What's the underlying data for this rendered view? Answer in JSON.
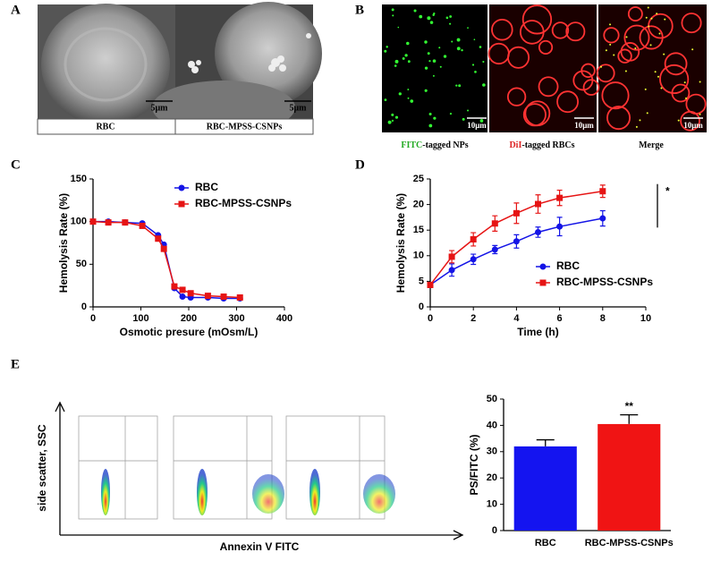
{
  "panels": {
    "a": "A",
    "b": "B",
    "c": "C",
    "d": "D",
    "e": "E"
  },
  "sem": {
    "scale_left": "5μm",
    "scale_right": "5μm",
    "label_left": "RBC",
    "label_right": "RBC-MPSS-CSNPs"
  },
  "fluorescence": {
    "scales": [
      "10μm",
      "10μm",
      "10μm"
    ],
    "captions": [
      {
        "highlight": "FITC",
        "rest": "-tagged NPs"
      },
      {
        "highlight": "DiI",
        "rest": "-tagged RBCs"
      },
      {
        "highlight": "",
        "rest": "Merge"
      }
    ]
  },
  "flow": {
    "ylabel": "side scatter, SSC",
    "xlabel": "Annexin V FITC"
  },
  "chart_data": [
    {
      "type": "line",
      "xlabel": "Osmotic presure (mOsm/L)",
      "ylabel": "Hemolysis Rate (%)",
      "x": [
        0,
        32,
        67,
        103,
        136,
        148,
        170,
        187,
        204,
        240,
        273,
        307
      ],
      "xlim": [
        0,
        400
      ],
      "xticks": [
        0,
        100,
        200,
        300,
        400
      ],
      "ylim": [
        0,
        150
      ],
      "yticks": [
        0,
        50,
        100,
        150
      ],
      "legend": "upper right",
      "series": [
        {
          "name": "RBC",
          "color": "#1414e6",
          "marker": "circle",
          "values": [
            100,
            100,
            99,
            98,
            84,
            73,
            22,
            12,
            11,
            11,
            10,
            10
          ]
        },
        {
          "name": "RBC-MPSS-CSNPs",
          "color": "#e61414",
          "marker": "square",
          "values": [
            100,
            99,
            99,
            95,
            80,
            68,
            24,
            20,
            16,
            13,
            12,
            11
          ]
        }
      ]
    },
    {
      "type": "line",
      "xlabel": "Time (h)",
      "ylabel": "Hemolysis Rate (%)",
      "x": [
        0,
        1,
        2,
        3,
        4,
        5,
        6,
        8
      ],
      "xlim": [
        0,
        10
      ],
      "xticks": [
        0,
        2,
        4,
        6,
        8,
        10
      ],
      "ylim": [
        0,
        25
      ],
      "yticks": [
        0,
        5,
        10,
        15,
        20,
        25
      ],
      "legend": "lower right",
      "annotation": "*",
      "series": [
        {
          "name": "RBC",
          "color": "#1414e6",
          "marker": "circle",
          "values": [
            4.3,
            7.2,
            9.3,
            11.2,
            12.8,
            14.6,
            15.7,
            17.3
          ],
          "errors": [
            0.5,
            1.2,
            1,
            0.8,
            1.3,
            1,
            1.8,
            1.5
          ]
        },
        {
          "name": "RBC-MPSS-CSNPs",
          "color": "#e61414",
          "marker": "square",
          "values": [
            4.3,
            9.8,
            13.2,
            16.3,
            18.3,
            20.1,
            21.3,
            22.6
          ],
          "errors": [
            0.5,
            1.2,
            1.3,
            1.5,
            2,
            1.8,
            1.5,
            1.2
          ]
        }
      ]
    },
    {
      "type": "bar",
      "ylabel": "PS/FITC (%)",
      "categories": [
        "RBC",
        "RBC-MPSS-CSNPs"
      ],
      "values": [
        32,
        40.5
      ],
      "errors": [
        2.5,
        3.5
      ],
      "colors": [
        "#1414f0",
        "#f01414"
      ],
      "ylim": [
        0,
        50
      ],
      "yticks": [
        0,
        10,
        20,
        30,
        40,
        50
      ],
      "annotation": "**"
    }
  ]
}
